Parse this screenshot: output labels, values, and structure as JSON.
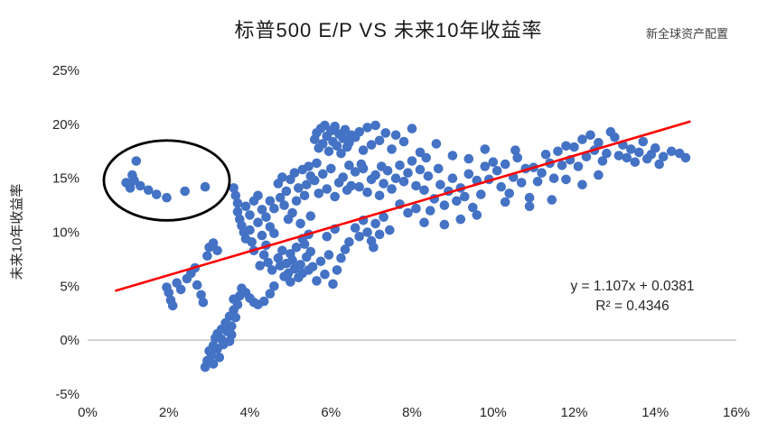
{
  "chart_data": {
    "type": "scatter",
    "title": "标普500 E/P  VS 未来10年收益率",
    "watermark": "新全球资产配置",
    "xlabel": "",
    "ylabel": "未来10年收益率",
    "xlim": [
      0,
      16
    ],
    "ylim": [
      -5,
      25
    ],
    "x_tick_values": [
      0,
      2,
      4,
      6,
      8,
      10,
      12,
      14,
      16
    ],
    "x_ticks": [
      "0%",
      "2%",
      "4%",
      "6%",
      "8%",
      "10%",
      "12%",
      "14%",
      "16%"
    ],
    "y_tick_values": [
      -5,
      0,
      5,
      10,
      15,
      20,
      25
    ],
    "y_ticks": [
      "-5%",
      "0%",
      "5%",
      "10%",
      "15%",
      "20%",
      "25%"
    ],
    "grid": "off",
    "legend": "none",
    "point_color": "#4472C4",
    "axis_line_color": "#a6a6a6",
    "trendline": {
      "color": "#FF0000",
      "slope": 1.107,
      "intercept_pct": 3.81,
      "x_start": 0.7,
      "x_end": 14.85,
      "label_line1": "y = 1.107x + 0.0381",
      "label_line2": "R² = 0.4346"
    },
    "annotation_ellipse": {
      "cx": 1.95,
      "cy": 14.8,
      "rx": 1.55,
      "ry": 3.7,
      "color": "#000000"
    },
    "points": [
      [
        0.95,
        14.6
      ],
      [
        1.05,
        14.1
      ],
      [
        1.1,
        15.3
      ],
      [
        1.2,
        16.6
      ],
      [
        1.3,
        14.3
      ],
      [
        1.5,
        13.9
      ],
      [
        1.7,
        13.5
      ],
      [
        1.95,
        13.2
      ],
      [
        2.4,
        13.8
      ],
      [
        2.9,
        14.2
      ],
      [
        1.15,
        14.8
      ],
      [
        1.95,
        4.9
      ],
      [
        2.0,
        4.4
      ],
      [
        2.05,
        3.7
      ],
      [
        2.1,
        3.2
      ],
      [
        2.2,
        5.3
      ],
      [
        2.3,
        4.7
      ],
      [
        2.45,
        5.7
      ],
      [
        2.55,
        6.2
      ],
      [
        2.65,
        6.7
      ],
      [
        2.7,
        5.1
      ],
      [
        2.8,
        4.2
      ],
      [
        2.85,
        3.5
      ],
      [
        3.0,
        8.6
      ],
      [
        3.1,
        9.0
      ],
      [
        3.2,
        8.3
      ],
      [
        2.95,
        7.8
      ],
      [
        2.9,
        -2.5
      ],
      [
        2.95,
        -1.9
      ],
      [
        3.0,
        -1.0
      ],
      [
        3.05,
        -1.4
      ],
      [
        3.1,
        -2.2
      ],
      [
        3.1,
        -0.5
      ],
      [
        3.15,
        0.2
      ],
      [
        3.2,
        -0.8
      ],
      [
        3.2,
        0.6
      ],
      [
        3.25,
        -1.6
      ],
      [
        3.3,
        0.1
      ],
      [
        3.3,
        1.0
      ],
      [
        3.35,
        -0.4
      ],
      [
        3.4,
        1.6
      ],
      [
        3.45,
        0.8
      ],
      [
        3.5,
        2.2
      ],
      [
        3.55,
        1.3
      ],
      [
        3.6,
        2.8
      ],
      [
        3.65,
        2.1
      ],
      [
        3.7,
        3.3
      ],
      [
        3.5,
        -0.1
      ],
      [
        3.55,
        0.5
      ],
      [
        3.75,
        4.1
      ],
      [
        3.8,
        4.8
      ],
      [
        3.6,
        3.8
      ],
      [
        3.9,
        4.4
      ],
      [
        4.0,
        3.9
      ],
      [
        4.1,
        3.5
      ],
      [
        4.2,
        3.3
      ],
      [
        4.35,
        3.6
      ],
      [
        4.5,
        4.3
      ],
      [
        4.6,
        5.0
      ],
      [
        3.6,
        14.1
      ],
      [
        3.65,
        13.4
      ],
      [
        3.7,
        12.7
      ],
      [
        3.7,
        11.9
      ],
      [
        3.75,
        11.2
      ],
      [
        3.8,
        10.6
      ],
      [
        3.85,
        10.0
      ],
      [
        3.9,
        9.4
      ],
      [
        3.9,
        12.4
      ],
      [
        4.0,
        11.6
      ],
      [
        4.0,
        10.2
      ],
      [
        4.05,
        9.1
      ],
      [
        4.1,
        8.3
      ],
      [
        4.1,
        12.9
      ],
      [
        4.2,
        13.4
      ],
      [
        4.2,
        10.9
      ],
      [
        4.3,
        9.7
      ],
      [
        4.3,
        12.1
      ],
      [
        4.4,
        11.4
      ],
      [
        4.4,
        8.8
      ],
      [
        4.5,
        10.5
      ],
      [
        4.5,
        12.9
      ],
      [
        4.6,
        12.2
      ],
      [
        4.6,
        9.9
      ],
      [
        4.35,
        7.9
      ],
      [
        4.45,
        7.2
      ],
      [
        4.55,
        6.5
      ],
      [
        4.25,
        6.9
      ],
      [
        4.7,
        7.6
      ],
      [
        4.75,
        6.9
      ],
      [
        4.8,
        8.3
      ],
      [
        4.85,
        5.9
      ],
      [
        4.9,
        7.1
      ],
      [
        4.95,
        6.2
      ],
      [
        5.0,
        8.0
      ],
      [
        5.0,
        5.4
      ],
      [
        5.05,
        7.4
      ],
      [
        5.1,
        6.6
      ],
      [
        5.15,
        8.6
      ],
      [
        5.2,
        5.8
      ],
      [
        5.25,
        7.0
      ],
      [
        5.3,
        6.2
      ],
      [
        5.35,
        8.9
      ],
      [
        5.4,
        7.7
      ],
      [
        5.45,
        6.5
      ],
      [
        5.5,
        8.2
      ],
      [
        5.3,
        9.4
      ],
      [
        5.45,
        9.8
      ],
      [
        4.7,
        14.5
      ],
      [
        4.8,
        15.1
      ],
      [
        4.9,
        13.8
      ],
      [
        5.0,
        14.9
      ],
      [
        5.1,
        15.5
      ],
      [
        5.2,
        14.1
      ],
      [
        5.3,
        15.8
      ],
      [
        5.4,
        14.4
      ],
      [
        5.5,
        15.2
      ],
      [
        4.75,
        13.2
      ],
      [
        5.45,
        16.1
      ],
      [
        4.85,
        12.5
      ],
      [
        5.15,
        12.9
      ],
      [
        5.35,
        13.4
      ],
      [
        5.05,
        11.8
      ],
      [
        4.95,
        11.2
      ],
      [
        5.25,
        10.8
      ],
      [
        5.5,
        11.5
      ],
      [
        5.6,
        18.6
      ],
      [
        5.65,
        19.2
      ],
      [
        5.7,
        17.8
      ],
      [
        5.75,
        19.6
      ],
      [
        5.8,
        18.2
      ],
      [
        5.85,
        19.9
      ],
      [
        5.9,
        18.9
      ],
      [
        5.95,
        17.5
      ],
      [
        6.0,
        19.4
      ],
      [
        6.05,
        18.4
      ],
      [
        6.1,
        19.8
      ],
      [
        6.15,
        18.0
      ],
      [
        6.2,
        19.1
      ],
      [
        6.25,
        17.3
      ],
      [
        6.3,
        18.7
      ],
      [
        6.35,
        19.5
      ],
      [
        6.4,
        17.9
      ],
      [
        6.45,
        18.3
      ],
      [
        6.5,
        19.0
      ],
      [
        5.6,
        14.8
      ],
      [
        5.7,
        13.6
      ],
      [
        5.8,
        15.4
      ],
      [
        5.9,
        14.0
      ],
      [
        6.0,
        15.9
      ],
      [
        6.1,
        13.3
      ],
      [
        6.2,
        14.6
      ],
      [
        6.3,
        15.1
      ],
      [
        6.4,
        13.9
      ],
      [
        6.5,
        14.3
      ],
      [
        5.65,
        16.4
      ],
      [
        6.45,
        16.2
      ],
      [
        5.55,
        6.8
      ],
      [
        5.65,
        5.5
      ],
      [
        5.75,
        7.3
      ],
      [
        5.85,
        6.1
      ],
      [
        5.95,
        7.9
      ],
      [
        6.05,
        5.2
      ],
      [
        6.15,
        6.5
      ],
      [
        6.25,
        7.6
      ],
      [
        6.35,
        8.4
      ],
      [
        6.45,
        9.1
      ],
      [
        5.9,
        9.6
      ],
      [
        6.1,
        10.3
      ],
      [
        6.6,
        15.6
      ],
      [
        6.7,
        14.2
      ],
      [
        6.8,
        15.9
      ],
      [
        6.9,
        13.7
      ],
      [
        7.0,
        14.9
      ],
      [
        7.1,
        15.3
      ],
      [
        7.2,
        13.4
      ],
      [
        7.3,
        14.5
      ],
      [
        7.4,
        15.7
      ],
      [
        7.5,
        14.0
      ],
      [
        6.75,
        16.3
      ],
      [
        7.25,
        16.1
      ],
      [
        6.6,
        18.8
      ],
      [
        6.7,
        19.3
      ],
      [
        6.8,
        17.6
      ],
      [
        6.9,
        19.7
      ],
      [
        7.0,
        18.1
      ],
      [
        7.1,
        19.9
      ],
      [
        7.2,
        18.5
      ],
      [
        7.35,
        19.2
      ],
      [
        7.5,
        17.7
      ],
      [
        6.6,
        10.4
      ],
      [
        6.7,
        9.6
      ],
      [
        6.8,
        11.1
      ],
      [
        6.9,
        10.0
      ],
      [
        7.0,
        9.2
      ],
      [
        7.1,
        10.8
      ],
      [
        7.2,
        9.8
      ],
      [
        7.3,
        11.4
      ],
      [
        7.45,
        10.2
      ],
      [
        7.05,
        8.6
      ],
      [
        7.6,
        15.0
      ],
      [
        7.7,
        16.2
      ],
      [
        7.8,
        14.7
      ],
      [
        7.9,
        15.5
      ],
      [
        8.0,
        16.6
      ],
      [
        8.1,
        14.3
      ],
      [
        8.2,
        15.8
      ],
      [
        8.3,
        13.9
      ],
      [
        8.4,
        15.2
      ],
      [
        7.6,
        19.0
      ],
      [
        7.8,
        18.4
      ],
      [
        8.0,
        19.6
      ],
      [
        8.2,
        17.4
      ],
      [
        7.7,
        12.6
      ],
      [
        7.9,
        11.8
      ],
      [
        8.1,
        12.2
      ],
      [
        8.3,
        10.9
      ],
      [
        8.45,
        12.0
      ],
      [
        8.35,
        16.9
      ],
      [
        8.55,
        13.1
      ],
      [
        8.7,
        14.4
      ],
      [
        8.8,
        12.5
      ],
      [
        8.9,
        13.8
      ],
      [
        9.0,
        15.0
      ],
      [
        9.1,
        12.9
      ],
      [
        9.2,
        14.1
      ],
      [
        9.3,
        13.3
      ],
      [
        9.4,
        15.4
      ],
      [
        9.5,
        12.3
      ],
      [
        9.6,
        14.8
      ],
      [
        9.7,
        13.5
      ],
      [
        9.8,
        16.1
      ],
      [
        9.9,
        14.9
      ],
      [
        10.0,
        16.5
      ],
      [
        8.6,
        18.2
      ],
      [
        9.0,
        17.1
      ],
      [
        9.4,
        16.8
      ],
      [
        9.8,
        17.7
      ],
      [
        8.8,
        10.7
      ],
      [
        9.2,
        11.2
      ],
      [
        9.6,
        11.6
      ],
      [
        8.65,
        15.9
      ],
      [
        10.1,
        15.7
      ],
      [
        10.2,
        14.2
      ],
      [
        10.3,
        16.3
      ],
      [
        10.4,
        13.6
      ],
      [
        10.5,
        15.1
      ],
      [
        10.6,
        16.9
      ],
      [
        10.7,
        14.6
      ],
      [
        10.8,
        15.9
      ],
      [
        10.9,
        13.2
      ],
      [
        11.0,
        16.0
      ],
      [
        11.1,
        14.7
      ],
      [
        11.2,
        15.5
      ],
      [
        11.3,
        17.2
      ],
      [
        11.4,
        16.4
      ],
      [
        11.5,
        15.0
      ],
      [
        10.3,
        12.8
      ],
      [
        10.9,
        12.4
      ],
      [
        11.45,
        13.0
      ],
      [
        10.55,
        17.6
      ],
      [
        11.6,
        17.5
      ],
      [
        11.7,
        16.2
      ],
      [
        11.8,
        18.0
      ],
      [
        11.9,
        16.7
      ],
      [
        12.0,
        17.9
      ],
      [
        12.1,
        16.1
      ],
      [
        12.2,
        18.6
      ],
      [
        12.3,
        17.0
      ],
      [
        12.4,
        19.0
      ],
      [
        12.5,
        17.6
      ],
      [
        12.6,
        18.3
      ],
      [
        12.7,
        16.6
      ],
      [
        12.8,
        17.3
      ],
      [
        12.9,
        19.3
      ],
      [
        13.0,
        18.8
      ],
      [
        11.8,
        14.9
      ],
      [
        12.2,
        14.4
      ],
      [
        12.6,
        15.3
      ],
      [
        13.1,
        17.1
      ],
      [
        13.2,
        18.1
      ],
      [
        13.3,
        16.9
      ],
      [
        13.4,
        17.7
      ],
      [
        13.5,
        16.5
      ],
      [
        13.6,
        17.4
      ],
      [
        13.7,
        18.4
      ],
      [
        13.8,
        16.8
      ],
      [
        13.9,
        17.2
      ],
      [
        14.0,
        17.8
      ],
      [
        14.1,
        16.3
      ],
      [
        14.2,
        17.0
      ],
      [
        14.4,
        17.5
      ],
      [
        14.6,
        17.3
      ],
      [
        14.75,
        16.9
      ]
    ]
  }
}
